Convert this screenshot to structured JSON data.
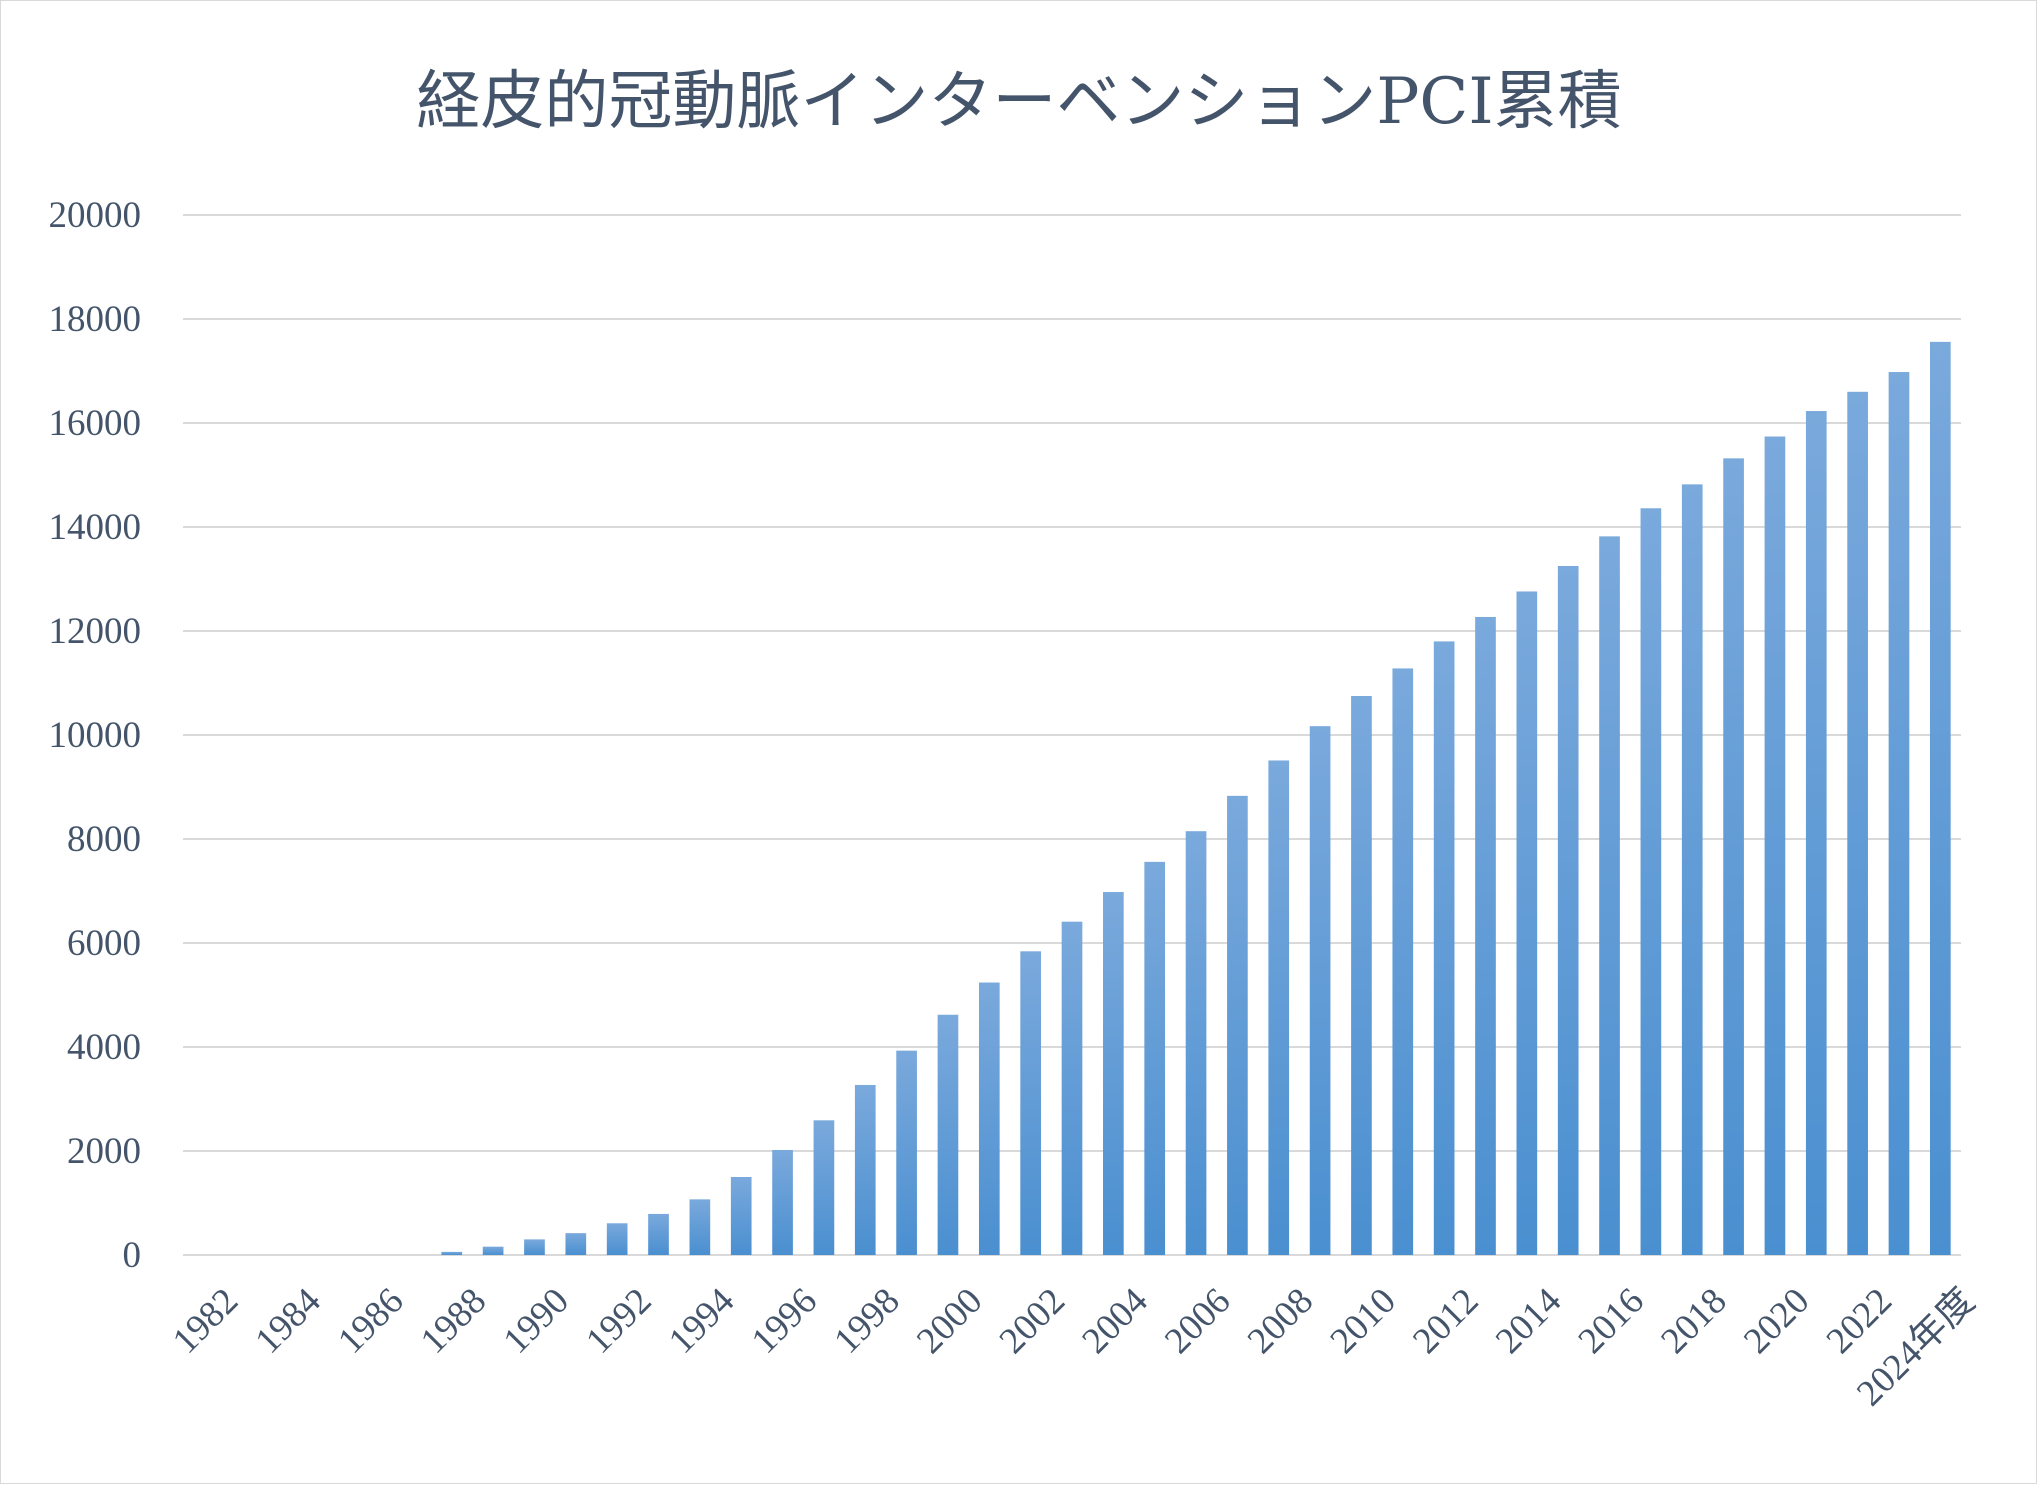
{
  "chart_data": {
    "type": "bar",
    "title": "経皮的冠動脈インターベンションPCI累積",
    "xlabel": "",
    "ylabel": "",
    "ylim": [
      0,
      20000
    ],
    "yticks": [
      0,
      2000,
      4000,
      6000,
      8000,
      10000,
      12000,
      14000,
      16000,
      18000,
      20000
    ],
    "grid": true,
    "legend": "none",
    "colors": {
      "bar_top": "#7aa9dc",
      "bar_bottom": "#4a8fd0",
      "text": "#44546a",
      "grid": "#d9d9d9"
    },
    "categories": [
      "1982",
      "1983",
      "1984",
      "1985",
      "1986",
      "1987",
      "1988",
      "1989",
      "1990",
      "1991",
      "1992",
      "1993",
      "1994",
      "1995",
      "1996",
      "1997",
      "1998",
      "1999",
      "2000",
      "2001",
      "2002",
      "2003",
      "2004",
      "2005",
      "2006",
      "2007",
      "2008",
      "2009",
      "2010",
      "2011",
      "2012",
      "2013",
      "2014",
      "2015",
      "2016",
      "2017",
      "2018",
      "2019",
      "2020",
      "2021",
      "2022",
      "2023",
      "2024年度"
    ],
    "tick_labels": [
      "1982",
      "1984",
      "1986",
      "1988",
      "1990",
      "1992",
      "1994",
      "1996",
      "1998",
      "2000",
      "2002",
      "2004",
      "2006",
      "2008",
      "2010",
      "2012",
      "2014",
      "2016",
      "2018",
      "2020",
      "2022",
      "2024年度"
    ],
    "values": [
      0,
      0,
      0,
      0,
      0,
      0,
      60,
      160,
      300,
      420,
      610,
      790,
      1070,
      1500,
      2020,
      2590,
      3270,
      3930,
      4620,
      5240,
      5840,
      6410,
      6980,
      7560,
      8150,
      8830,
      9510,
      10170,
      10750,
      11280,
      11800,
      12270,
      12760,
      13250,
      13820,
      14360,
      14820,
      15320,
      15740,
      16230,
      16600,
      16980,
      17560
    ]
  }
}
